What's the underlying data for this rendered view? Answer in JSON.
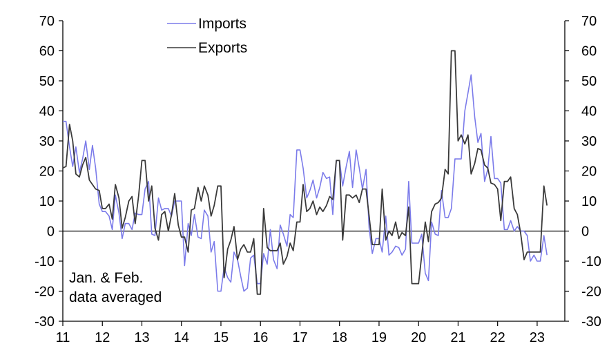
{
  "chart_data": {
    "type": "line",
    "title": "",
    "xlabel": "",
    "ylabel": "",
    "ylim": [
      -30,
      70
    ],
    "y_ticks": [
      70,
      60,
      50,
      40,
      30,
      20,
      10,
      0,
      -10,
      -20,
      -30
    ],
    "y_tick_labels": [
      "70",
      "60",
      "50",
      "40",
      "30",
      "20",
      "10",
      "0",
      "-10",
      "-20",
      "-30"
    ],
    "x_range": [
      2011.0,
      2023.7
    ],
    "x_ticks": [
      2011,
      2012,
      2013,
      2014,
      2015,
      2016,
      2017,
      2018,
      2019,
      2020,
      2021,
      2022,
      2023
    ],
    "x_tick_labels": [
      "11",
      "12",
      "13",
      "14",
      "15",
      "16",
      "17",
      "18",
      "19",
      "20",
      "21",
      "22",
      "23"
    ],
    "right_axis": true,
    "zero_line": true,
    "grid": false,
    "legend_position": "top-left",
    "note": [
      "Jan. & Feb.",
      "data averaged"
    ],
    "series": [
      {
        "name": "Imports",
        "color": "#7b7bea",
        "x": [
          2011.0,
          2011.08,
          2011.17,
          2011.25,
          2011.33,
          2011.42,
          2011.5,
          2011.58,
          2011.67,
          2011.75,
          2011.83,
          2011.92,
          2012.0,
          2012.08,
          2012.17,
          2012.25,
          2012.33,
          2012.42,
          2012.5,
          2012.58,
          2012.67,
          2012.75,
          2012.83,
          2012.92,
          2013.0,
          2013.08,
          2013.17,
          2013.25,
          2013.33,
          2013.42,
          2013.5,
          2013.58,
          2013.67,
          2013.75,
          2013.83,
          2013.92,
          2014.0,
          2014.08,
          2014.17,
          2014.25,
          2014.33,
          2014.42,
          2014.5,
          2014.58,
          2014.67,
          2014.75,
          2014.83,
          2014.92,
          2015.0,
          2015.08,
          2015.17,
          2015.25,
          2015.33,
          2015.42,
          2015.5,
          2015.58,
          2015.67,
          2015.75,
          2015.83,
          2015.92,
          2016.0,
          2016.08,
          2016.17,
          2016.25,
          2016.33,
          2016.42,
          2016.5,
          2016.58,
          2016.67,
          2016.75,
          2016.83,
          2016.92,
          2017.0,
          2017.08,
          2017.17,
          2017.25,
          2017.33,
          2017.42,
          2017.5,
          2017.58,
          2017.67,
          2017.75,
          2017.83,
          2017.92,
          2018.0,
          2018.08,
          2018.17,
          2018.25,
          2018.33,
          2018.42,
          2018.5,
          2018.58,
          2018.67,
          2018.75,
          2018.83,
          2018.92,
          2019.0,
          2019.08,
          2019.17,
          2019.25,
          2019.33,
          2019.42,
          2019.5,
          2019.58,
          2019.67,
          2019.75,
          2019.83,
          2019.92,
          2020.0,
          2020.08,
          2020.17,
          2020.25,
          2020.33,
          2020.42,
          2020.5,
          2020.58,
          2020.67,
          2020.75,
          2020.83,
          2020.92,
          2021.0,
          2021.08,
          2021.17,
          2021.25,
          2021.33,
          2021.42,
          2021.5,
          2021.58,
          2021.67,
          2021.75,
          2021.83,
          2021.92,
          2022.0,
          2022.08,
          2022.17,
          2022.25,
          2022.33,
          2022.42,
          2022.5,
          2022.58,
          2022.67,
          2022.75,
          2022.83,
          2022.92,
          2023.0,
          2023.08,
          2023.17,
          2023.25
        ],
        "values": [
          36.5,
          36.5,
          28.0,
          21.5,
          28.0,
          19.5,
          24.0,
          30.0,
          20.5,
          28.5,
          21.0,
          9.0,
          6.5,
          6.5,
          5.0,
          0.5,
          12.0,
          6.0,
          -2.5,
          2.5,
          2.5,
          0.5,
          6.0,
          5.5,
          5.5,
          14.0,
          16.5,
          -1.0,
          -1.5,
          11.0,
          7.0,
          7.5,
          7.5,
          5.0,
          10.0,
          10.0,
          10.0,
          -11.5,
          2.5,
          -1.5,
          5.5,
          -2.0,
          -2.5,
          7.0,
          5.0,
          -7.0,
          -3.5,
          -20.0,
          -20.0,
          -12.0,
          -15.5,
          -17.0,
          -7.0,
          -9.5,
          -15.0,
          -20.0,
          -19.0,
          -9.0,
          -8.0,
          -17.5,
          -17.5,
          -7.5,
          -11.0,
          0.5,
          -9.5,
          -12.5,
          2.0,
          -1.0,
          -5.0,
          5.5,
          4.5,
          27.0,
          27.0,
          21.0,
          11.0,
          13.5,
          17.0,
          11.0,
          14.5,
          19.5,
          17.5,
          18.0,
          5.5,
          23.5,
          23.5,
          15.0,
          21.5,
          26.5,
          14.5,
          27.0,
          21.0,
          14.0,
          20.5,
          1.0,
          -7.5,
          -2.5,
          -2.5,
          -7.0,
          5.0,
          -8.0,
          -7.0,
          -5.0,
          -5.5,
          -8.0,
          -6.0,
          16.5,
          -4.0,
          -4.0,
          -4.0,
          -1.0,
          -14.0,
          -16.5,
          3.0,
          -1.0,
          -1.5,
          13.5,
          4.5,
          4.5,
          7.5,
          24.0,
          24.0,
          24.0,
          40.0,
          46.0,
          52.0,
          38.0,
          29.5,
          32.5,
          16.5,
          20.5,
          31.5,
          17.5,
          17.5,
          16.0,
          0.5,
          0.5,
          3.5,
          0.0,
          1.5,
          0.0,
          0.0,
          -1.5,
          -10.0,
          -8.0,
          -10.0,
          -10.0,
          -1.5,
          -8.0
        ]
      },
      {
        "name": "Exports",
        "color": "#3a3a3a",
        "x": [
          2011.0,
          2011.08,
          2011.17,
          2011.25,
          2011.33,
          2011.42,
          2011.5,
          2011.58,
          2011.67,
          2011.75,
          2011.83,
          2011.92,
          2012.0,
          2012.08,
          2012.17,
          2012.25,
          2012.33,
          2012.42,
          2012.5,
          2012.58,
          2012.67,
          2012.75,
          2012.83,
          2012.92,
          2013.0,
          2013.08,
          2013.17,
          2013.25,
          2013.33,
          2013.42,
          2013.5,
          2013.58,
          2013.67,
          2013.75,
          2013.83,
          2013.92,
          2014.0,
          2014.08,
          2014.17,
          2014.25,
          2014.33,
          2014.42,
          2014.5,
          2014.58,
          2014.67,
          2014.75,
          2014.83,
          2014.92,
          2015.0,
          2015.08,
          2015.17,
          2015.25,
          2015.33,
          2015.42,
          2015.5,
          2015.58,
          2015.67,
          2015.75,
          2015.83,
          2015.92,
          2016.0,
          2016.08,
          2016.17,
          2016.25,
          2016.33,
          2016.42,
          2016.5,
          2016.58,
          2016.67,
          2016.75,
          2016.83,
          2016.92,
          2017.0,
          2017.08,
          2017.17,
          2017.25,
          2017.33,
          2017.42,
          2017.5,
          2017.58,
          2017.67,
          2017.75,
          2017.83,
          2017.92,
          2018.0,
          2018.08,
          2018.17,
          2018.25,
          2018.33,
          2018.42,
          2018.5,
          2018.58,
          2018.67,
          2018.75,
          2018.83,
          2018.92,
          2019.0,
          2019.08,
          2019.17,
          2019.25,
          2019.33,
          2019.42,
          2019.5,
          2019.58,
          2019.67,
          2019.75,
          2019.83,
          2019.92,
          2020.0,
          2020.08,
          2020.17,
          2020.25,
          2020.33,
          2020.42,
          2020.5,
          2020.58,
          2020.67,
          2020.75,
          2020.83,
          2020.92,
          2021.0,
          2021.08,
          2021.17,
          2021.25,
          2021.33,
          2021.42,
          2021.5,
          2021.58,
          2021.67,
          2021.75,
          2021.83,
          2021.92,
          2022.0,
          2022.08,
          2022.17,
          2022.25,
          2022.33,
          2022.42,
          2022.5,
          2022.58,
          2022.67,
          2022.75,
          2022.83,
          2022.92,
          2023.0,
          2023.08,
          2023.17,
          2023.25
        ],
        "values": [
          21.0,
          21.5,
          35.5,
          30.0,
          19.0,
          18.0,
          22.0,
          24.5,
          17.0,
          15.5,
          14.0,
          13.5,
          7.5,
          7.5,
          9.0,
          4.0,
          15.5,
          11.0,
          1.0,
          4.5,
          10.0,
          11.5,
          2.5,
          12.0,
          23.5,
          23.5,
          10.0,
          15.0,
          1.0,
          -3.0,
          5.5,
          6.5,
          0.0,
          5.5,
          12.5,
          2.0,
          -2.0,
          -2.0,
          -7.0,
          7.0,
          7.5,
          14.5,
          10.0,
          15.0,
          12.0,
          5.0,
          8.5,
          15.0,
          15.0,
          -15.5,
          -6.0,
          -3.0,
          1.5,
          -9.5,
          -6.0,
          -4.5,
          -7.0,
          -7.0,
          -2.5,
          -21.0,
          -21.0,
          7.5,
          -5.5,
          -6.5,
          -6.5,
          -6.5,
          -4.0,
          -11.0,
          -8.5,
          -4.0,
          -6.5,
          3.0,
          3.0,
          15.5,
          6.5,
          7.5,
          10.0,
          5.5,
          8.0,
          6.5,
          8.5,
          11.5,
          10.5,
          23.5,
          23.5,
          -3.0,
          12.0,
          12.0,
          11.0,
          12.0,
          9.5,
          14.0,
          14.0,
          5.0,
          -4.5,
          -4.5,
          -4.5,
          14.0,
          -3.0,
          0.0,
          -1.5,
          3.0,
          -2.5,
          -0.5,
          -1.5,
          8.0,
          -17.5,
          -17.5,
          -17.5,
          -8.0,
          3.0,
          -3.5,
          6.5,
          9.0,
          9.5,
          11.0,
          20.5,
          19.0,
          60.0,
          60.0,
          30.0,
          32.0,
          29.0,
          32.0,
          19.0,
          22.5,
          27.5,
          27.0,
          22.0,
          21.0,
          16.0,
          15.5,
          14.0,
          3.5,
          16.5,
          16.5,
          18.0,
          7.5,
          5.5,
          -0.5,
          -9.5,
          -7.0,
          -7.0,
          -7.0,
          -7.0,
          -7.0,
          15.0,
          8.5
        ]
      }
    ]
  }
}
